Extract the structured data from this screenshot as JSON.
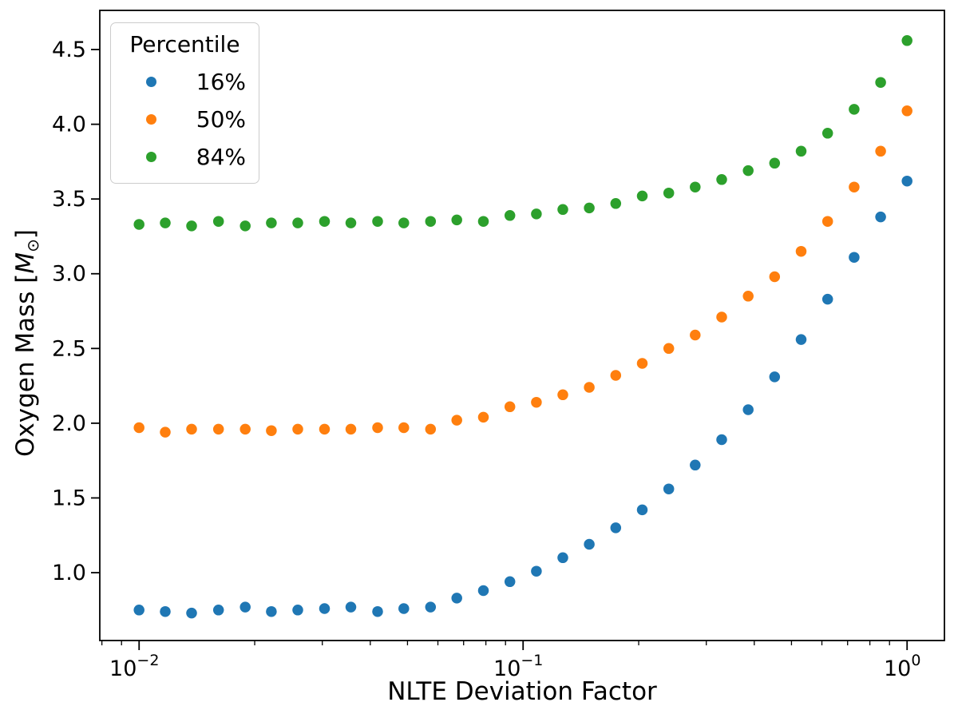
{
  "figure": {
    "xlabel": "NLTE Deviation Factor",
    "ylabel": {
      "pre": "Oxygen Mass [",
      "var": "M",
      "sub": "⊙",
      "post": "]"
    },
    "legend": {
      "title": "Percentile"
    }
  },
  "chart_data": {
    "type": "scatter",
    "title": "",
    "xlabel": "NLTE Deviation Factor",
    "ylabel": "Oxygen Mass [M_sun]",
    "x_scale": "log",
    "xlim": [
      0.0079,
      1.251
    ],
    "ylim": [
      0.546,
      4.762
    ],
    "grid": false,
    "legend_title": "Percentile",
    "legend_position": "upper left",
    "x_major_ticks": [
      0.01,
      0.1,
      1.0
    ],
    "x_tick_exponents": [
      -2,
      -1,
      0
    ],
    "y_ticks": [
      1.0,
      1.5,
      2.0,
      2.5,
      3.0,
      3.5,
      4.0,
      4.5
    ],
    "marker_diameter_px": 13.5,
    "x": [
      0.01,
      0.0117,
      0.0137,
      0.0161,
      0.0189,
      0.0221,
      0.0259,
      0.0304,
      0.0356,
      0.0418,
      0.0489,
      0.0574,
      0.0672,
      0.0788,
      0.0924,
      0.1083,
      0.1269,
      0.1487,
      0.1743,
      0.2043,
      0.2395,
      0.2807,
      0.329,
      0.3857,
      0.452,
      0.5298,
      0.621,
      0.7279,
      0.8532,
      1.0
    ],
    "series": [
      {
        "name": "16%",
        "color": "#1f77b4",
        "values": [
          0.75,
          0.74,
          0.73,
          0.75,
          0.77,
          0.74,
          0.75,
          0.76,
          0.77,
          0.74,
          0.76,
          0.77,
          0.83,
          0.88,
          0.94,
          1.01,
          1.1,
          1.19,
          1.3,
          1.42,
          1.56,
          1.72,
          1.89,
          2.09,
          2.31,
          2.56,
          2.83,
          3.11,
          3.38,
          3.62
        ]
      },
      {
        "name": "50%",
        "color": "#ff7f0e",
        "values": [
          1.97,
          1.94,
          1.96,
          1.96,
          1.96,
          1.95,
          1.96,
          1.96,
          1.96,
          1.97,
          1.97,
          1.96,
          2.02,
          2.04,
          2.11,
          2.14,
          2.19,
          2.24,
          2.32,
          2.4,
          2.5,
          2.59,
          2.71,
          2.85,
          2.98,
          3.15,
          3.35,
          3.58,
          3.82,
          4.09
        ]
      },
      {
        "name": "84%",
        "color": "#2ca02c",
        "values": [
          3.33,
          3.34,
          3.32,
          3.35,
          3.32,
          3.34,
          3.34,
          3.35,
          3.34,
          3.35,
          3.34,
          3.35,
          3.36,
          3.35,
          3.39,
          3.4,
          3.43,
          3.44,
          3.47,
          3.52,
          3.54,
          3.58,
          3.63,
          3.69,
          3.74,
          3.82,
          3.94,
          4.1,
          4.28,
          4.56
        ]
      }
    ]
  }
}
